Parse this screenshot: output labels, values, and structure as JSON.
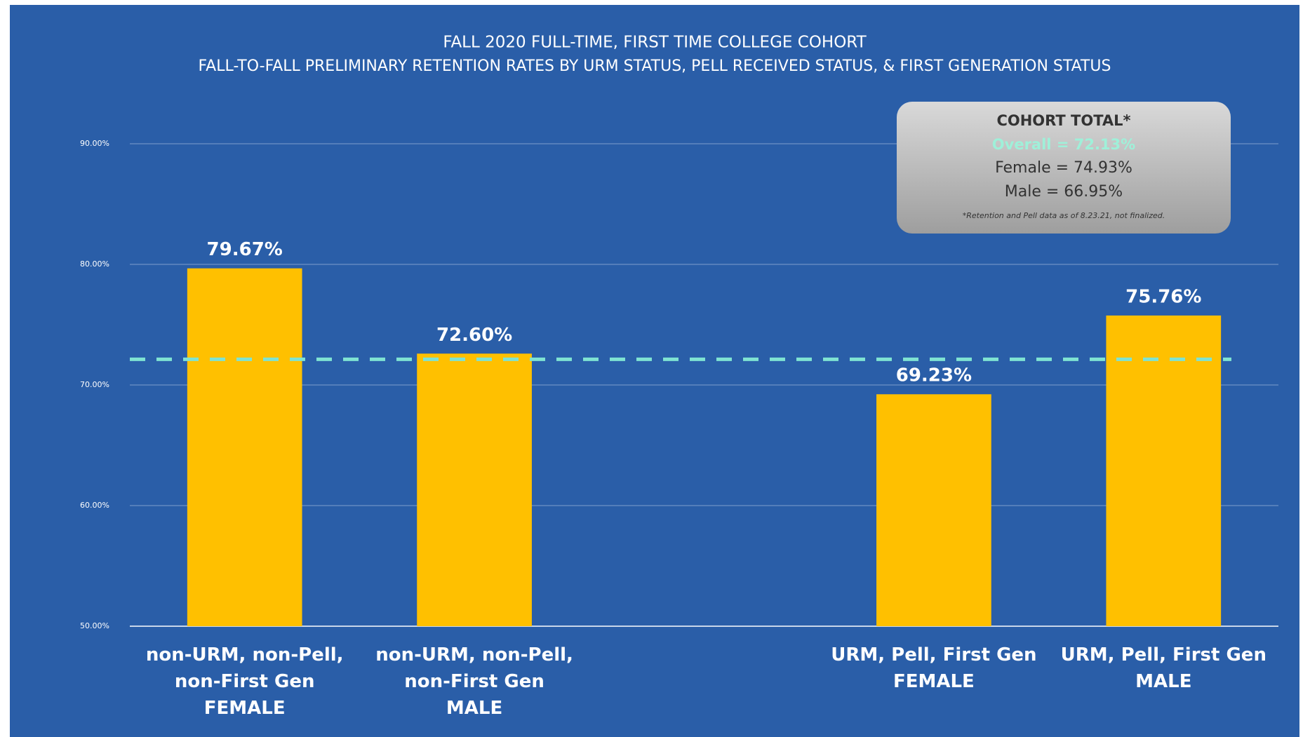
{
  "chart_data": {
    "type": "bar",
    "title": "FALL 2020 FULL-TIME, FIRST TIME COLLEGE COHORT",
    "subtitle": "FALL-TO-FALL PRELIMINARY RETENTION RATES BY URM STATUS, PELL RECEIVED STATUS, & FIRST GENERATION STATUS",
    "categories": [
      "non-URM, non-Pell,\nnon-First Gen\nFEMALE",
      "non-URM, non-Pell,\nnon-First Gen\nMALE",
      null,
      "URM, Pell, First Gen\nFEMALE",
      "URM, Pell, First Gen\nMALE"
    ],
    "values": [
      79.67,
      72.6,
      null,
      69.23,
      75.76
    ],
    "value_labels": [
      "79.67%",
      "72.60%",
      null,
      "69.23%",
      "75.76%"
    ],
    "color": "#ffc000",
    "ylim": [
      50,
      90
    ],
    "yticks": [
      {
        "value": 50,
        "label": "50.00%"
      },
      {
        "value": 60,
        "label": "60.00%"
      },
      {
        "value": 70,
        "label": "70.00%"
      },
      {
        "value": 80,
        "label": "80.00%"
      },
      {
        "value": 90,
        "label": "90.00%"
      }
    ],
    "grid": true,
    "reference_line": {
      "value": 72.13,
      "color": "#7fe3d2"
    },
    "annotation_box": {
      "title": "COHORT TOTAL*",
      "highlight": "Overall = 72.13%",
      "lines": [
        "Female = 74.93%",
        "Male = 66.95%"
      ],
      "note": "*Retention and Pell data as of 8.23.21, not finalized."
    }
  }
}
